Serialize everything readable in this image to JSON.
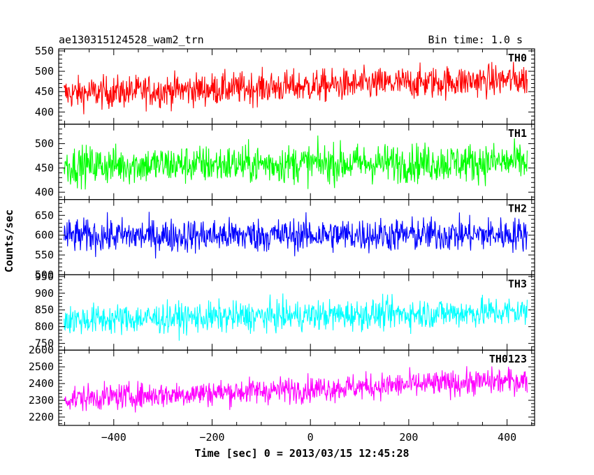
{
  "header": {
    "title": "ae130315124528_wam2_trn",
    "bin_time": "Bin time: 1.0 s"
  },
  "chart_data": {
    "type": "line",
    "title": "ae130315124528_wam2_trn",
    "subtitle": "Bin time: 1.0 s",
    "xlabel": "Time [sec] 0 = 2013/03/15 12:45:28",
    "ylabel": "Counts/sec",
    "xlim": [
      -512,
      456
    ],
    "x_ticks": [
      -400,
      -200,
      0,
      200,
      400
    ],
    "x_tick_labels": [
      "−400",
      "−200",
      "0",
      "200",
      "400"
    ],
    "grid": false,
    "series": [
      {
        "name": "TH0",
        "color": "#ff0000",
        "ylim": [
          370,
          555
        ],
        "y_ticks": [
          400,
          450,
          500,
          550
        ],
        "x_start": -501,
        "x_end": 441,
        "start_mean": 445,
        "end_mean": 480,
        "noise": 28
      },
      {
        "name": "TH1",
        "color": "#00ff00",
        "ylim": [
          385,
          540
        ],
        "y_ticks": [
          400,
          450,
          500
        ],
        "x_start": -501,
        "x_end": 441,
        "start_mean": 455,
        "end_mean": 462,
        "noise": 28
      },
      {
        "name": "TH2",
        "color": "#0000ff",
        "ylim": [
          500,
          690
        ],
        "y_ticks": [
          500,
          550,
          600,
          650
        ],
        "x_start": -501,
        "x_end": 441,
        "start_mean": 598,
        "end_mean": 602,
        "noise": 30
      },
      {
        "name": "TH3",
        "color": "#00ffff",
        "ylim": [
          730,
          955
        ],
        "y_ticks": [
          750,
          800,
          850,
          900,
          950
        ],
        "x_start": -501,
        "x_end": 441,
        "start_mean": 820,
        "end_mean": 845,
        "noise": 32
      },
      {
        "name": "TH0123",
        "color": "#ff00ff",
        "ylim": [
          2150,
          2600
        ],
        "y_ticks": [
          2200,
          2300,
          2400,
          2500,
          2600
        ],
        "x_start": -501,
        "x_end": 441,
        "start_mean": 2310,
        "end_mean": 2420,
        "noise": 55
      }
    ]
  }
}
